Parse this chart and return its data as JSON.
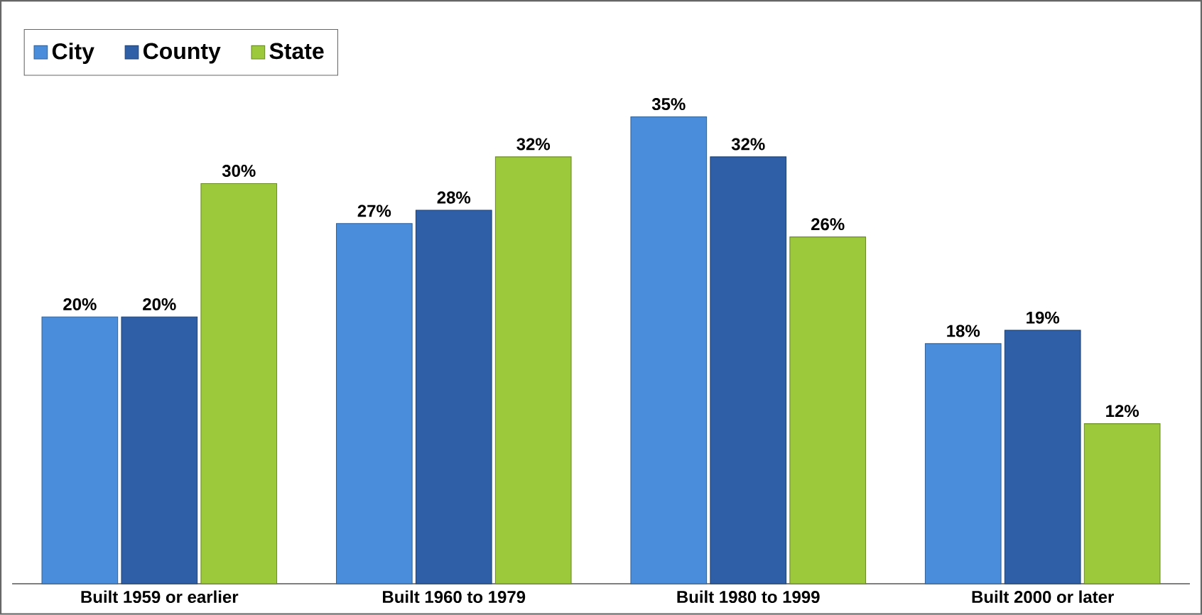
{
  "chart_data": {
    "type": "bar",
    "categories": [
      "Built 1959 or earlier",
      "Built 1960 to 1979",
      "Built 1980 to 1999",
      "Built 2000 or later"
    ],
    "series": [
      {
        "name": "City",
        "color": "#4a8edb",
        "values": [
          20,
          27,
          35,
          18
        ],
        "value_labels": [
          "20%",
          "27%",
          "35%",
          "18%"
        ]
      },
      {
        "name": "County",
        "color": "#2f5fa6",
        "values": [
          20,
          28,
          32,
          19
        ],
        "value_labels": [
          "20%",
          "28%",
          "32%",
          "19%"
        ]
      },
      {
        "name": "State",
        "color": "#9cc83c",
        "values": [
          30,
          32,
          26,
          12
        ],
        "value_labels": [
          "30%",
          "32%",
          "26%",
          "12%"
        ]
      }
    ],
    "legend": "top left"
  }
}
